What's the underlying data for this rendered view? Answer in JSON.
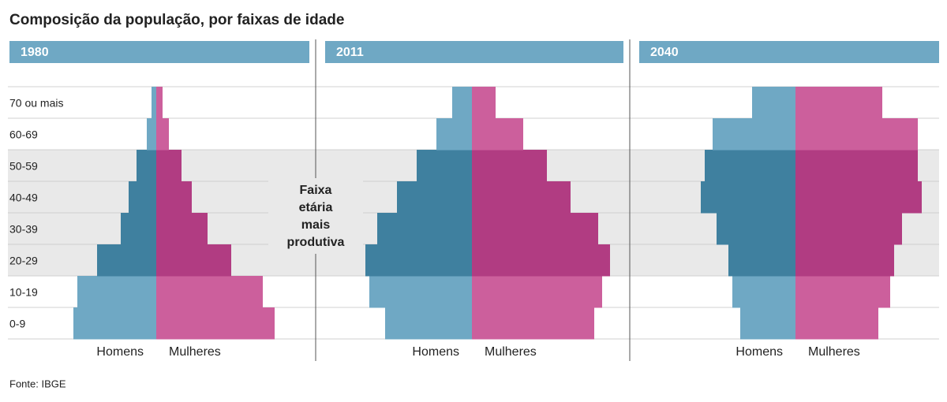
{
  "title": "Composição da população, por faixas de idade",
  "annotation": [
    "Faixa",
    "etária",
    "mais",
    "produtiva"
  ],
  "source": "Fonte: IBGE",
  "highlight_bands": [
    2,
    3,
    4,
    5
  ],
  "chart_data": [
    {
      "type": "pyramid",
      "title": "1980",
      "categories": [
        "0-9",
        "10-19",
        "20-29",
        "30-39",
        "40-49",
        "50-59",
        "60-69",
        "70 ou mais"
      ],
      "series": [
        {
          "name": "Homens",
          "color": "#6fa8c4",
          "highlight_color": "#3f809f",
          "values": [
            10.5,
            10,
            7.5,
            4.5,
            3.5,
            2.5,
            1.2,
            0.6
          ]
        },
        {
          "name": "Mulheres",
          "color": "#cc5f9c",
          "highlight_color": "#b13c82",
          "values": [
            15,
            13.5,
            9.5,
            6.5,
            4.5,
            3.2,
            1.6,
            0.8
          ]
        }
      ]
    },
    {
      "type": "pyramid",
      "title": "2011",
      "categories": [
        null,
        null,
        null,
        null,
        null,
        null,
        null,
        null
      ],
      "series": [
        {
          "name": "Homens",
          "color": "#6fa8c4",
          "highlight_color": "#3f809f",
          "values": [
            11,
            13,
            13.5,
            12,
            9.5,
            7,
            4.5,
            2.5
          ]
        },
        {
          "name": "Mulheres",
          "color": "#cc5f9c",
          "highlight_color": "#b13c82",
          "values": [
            15.5,
            16.5,
            17.5,
            16,
            12.5,
            9.5,
            6.5,
            3
          ]
        }
      ]
    },
    {
      "type": "pyramid",
      "title": "2040",
      "categories": [
        null,
        null,
        null,
        null,
        null,
        null,
        null,
        null
      ],
      "series": [
        {
          "name": "Homens",
          "color": "#6fa8c4",
          "highlight_color": "#3f809f",
          "values": [
            7,
            8,
            8.5,
            10,
            12,
            11.5,
            10.5,
            5.5
          ]
        },
        {
          "name": "Mulheres",
          "color": "#cc5f9c",
          "highlight_color": "#b13c82",
          "values": [
            10.5,
            12,
            12.5,
            13.5,
            16,
            15.5,
            15.5,
            11
          ]
        }
      ]
    }
  ]
}
